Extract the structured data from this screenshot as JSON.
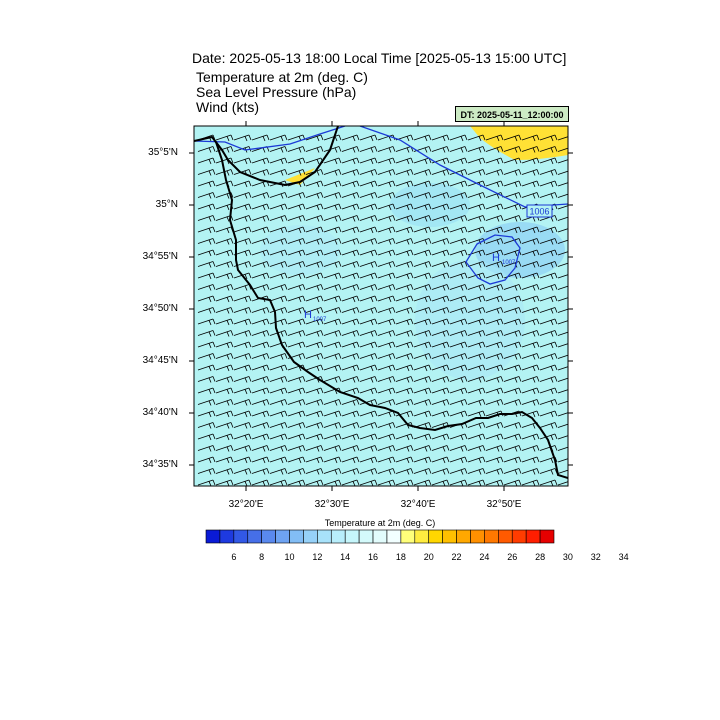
{
  "header": {
    "title": "Date: 2025-05-13  18:00 Local Time [2025-05-13  15:00 UTC]",
    "lines": [
      "Temperature at 2m   (deg. C)",
      "Sea Level Pressure   (hPa)",
      "Wind   (kts)"
    ],
    "dt_badge": "DT: 2025-05-11_12:00:00"
  },
  "map": {
    "lat_labels": [
      "35°5'N",
      "35°N",
      "34°55'N",
      "34°50'N",
      "34°45'N",
      "34°40'N",
      "34°35'N"
    ],
    "lon_labels": [
      "32°20'E",
      "32°30'E",
      "32°40'E",
      "32°50'E"
    ],
    "isobar_label": "1006",
    "high_centers": [
      {
        "symbol": "H",
        "value": "1007"
      },
      {
        "symbol": "H",
        "value": "1007"
      }
    ],
    "colors": {
      "land_fill": "#b3f3f3",
      "sea_fill": "#b3f3f3",
      "warm_fill": "#ffe135",
      "isobar": "#1c3ad6",
      "coast": "#000000"
    }
  },
  "colorbar": {
    "title": "Temperature at 2m  (deg. C)",
    "labels": [
      "6",
      "8",
      "10",
      "12",
      "14",
      "16",
      "18",
      "20",
      "22",
      "24",
      "26",
      "28",
      "30",
      "32",
      "34"
    ],
    "colors": [
      "#0a1ad6",
      "#1e3ae0",
      "#3258e6",
      "#466fe8",
      "#5a89ee",
      "#6ea3f2",
      "#82bdf5",
      "#96d1f8",
      "#a8e2fa",
      "#b8eefb",
      "#c6f6fb",
      "#d4fafb",
      "#e2fcfc",
      "#f2ffff",
      "#ffff7a",
      "#ffec40",
      "#ffd700",
      "#ffc000",
      "#ffa800",
      "#ff9000",
      "#ff7800",
      "#ff5a00",
      "#ff3c00",
      "#ff1e00",
      "#e60000"
    ]
  }
}
